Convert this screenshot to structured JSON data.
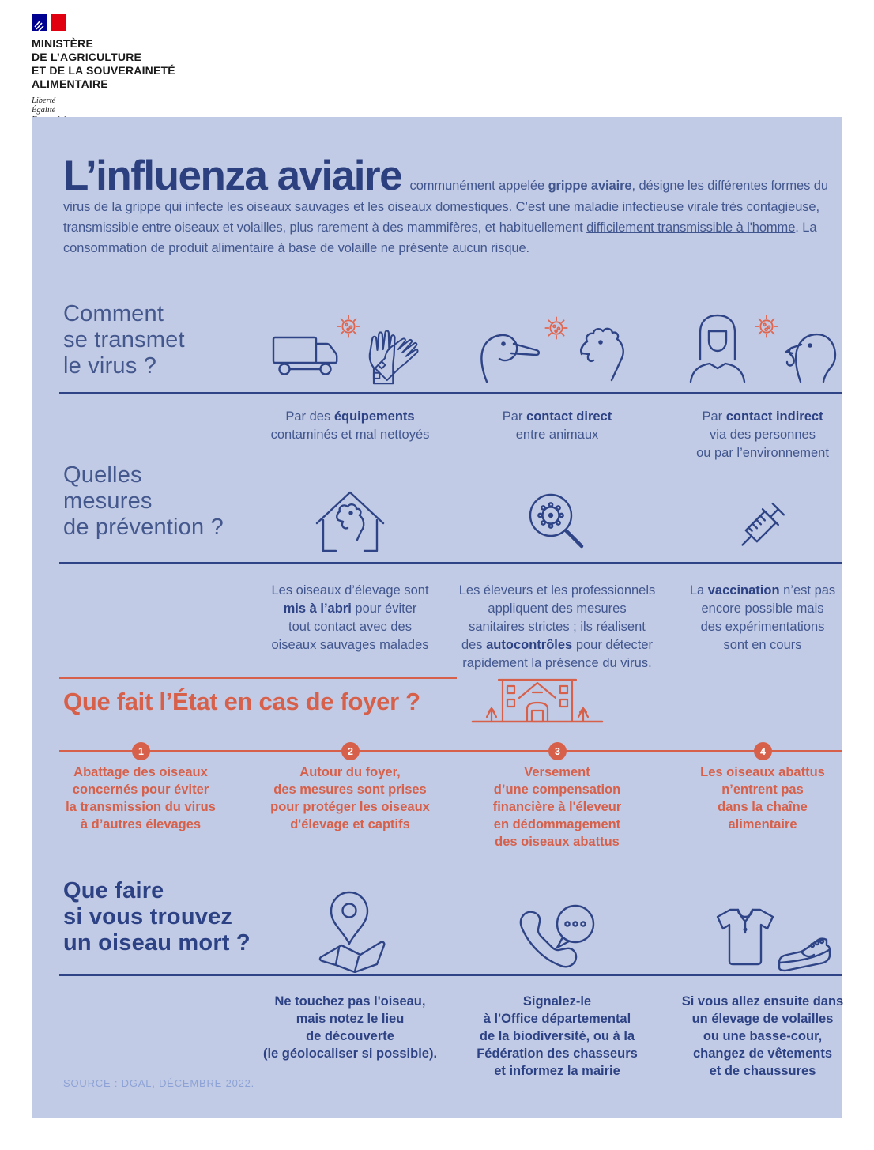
{
  "ministry": {
    "name_lines": [
      "MINISTÈRE",
      "DE L’AGRICULTURE",
      "ET DE LA SOUVERAINETÉ",
      "ALIMENTAIRE"
    ],
    "motto_lines": [
      "Liberté",
      "Égalité",
      "Fraternité"
    ]
  },
  "colors": {
    "panel_bg": "#c2cbe5",
    "navy": "#2e4486",
    "text_blue": "#41568e",
    "orange": "#d6604a",
    "virus_orange": "#e06650",
    "source_blue": "#8ca2d6",
    "flag_blue": "#000091",
    "flag_red": "#e1000f"
  },
  "title": "L’influenza aviaire",
  "intro_segments": [
    {
      "t": "communément appelée "
    },
    {
      "t": "grippe aviaire",
      "b": true
    },
    {
      "t": ", désigne les différentes formes du virus de la grippe qui infecte les oiseaux sauvages et les oiseaux domestiques. C’est une maladie infectieuse virale très contagieuse, transmissible entre oiseaux et volailles, plus rarement à des mammifères, et habituellement "
    },
    {
      "t": "difficilement transmissible à l'homme",
      "u": true
    },
    {
      "t": ". La consommation de produit alimentaire à base de volaille ne présente aucun risque."
    }
  ],
  "sections": {
    "transmission": {
      "heading": [
        {
          "t": "Comment"
        },
        {
          "br": true
        },
        {
          "t": "se transmet"
        },
        {
          "br": true
        },
        {
          "t": "le virus ?"
        }
      ],
      "items": [
        {
          "icon": "truck-gloves-virus-icon",
          "caption": [
            {
              "t": "Par des "
            },
            {
              "t": "équipements",
              "b": true
            },
            {
              "br": true
            },
            {
              "t": "contaminés et mal nettoyés"
            }
          ]
        },
        {
          "icon": "duck-chicken-virus-icon",
          "caption": [
            {
              "t": "Par "
            },
            {
              "t": "contact direct",
              "b": true
            },
            {
              "br": true
            },
            {
              "t": "entre animaux"
            }
          ]
        },
        {
          "icon": "person-turkey-virus-icon",
          "caption": [
            {
              "t": "Par "
            },
            {
              "t": "contact indirect",
              "b": true
            },
            {
              "br": true
            },
            {
              "t": "via des personnes"
            },
            {
              "br": true
            },
            {
              "t": "ou par l’environnement"
            }
          ]
        }
      ]
    },
    "prevention": {
      "heading": [
        {
          "t": "Quelles"
        },
        {
          "br": true
        },
        {
          "t": "mesures"
        },
        {
          "br": true
        },
        {
          "t": "de prévention ?"
        }
      ],
      "items": [
        {
          "icon": "henhouse-shelter-icon",
          "caption": [
            {
              "t": "Les oiseaux d’élevage sont"
            },
            {
              "br": true
            },
            {
              "t": "mis à l’abri",
              "b": true
            },
            {
              "t": " pour éviter"
            },
            {
              "br": true
            },
            {
              "t": "tout contact avec des"
            },
            {
              "br": true
            },
            {
              "t": "oiseaux sauvages malades"
            }
          ]
        },
        {
          "icon": "magnifier-virus-icon",
          "caption": [
            {
              "t": "Les éleveurs et les professionnels"
            },
            {
              "br": true
            },
            {
              "t": "appliquent des mesures"
            },
            {
              "br": true
            },
            {
              "t": "sanitaires strictes ; ils réalisent"
            },
            {
              "br": true
            },
            {
              "t": "des "
            },
            {
              "t": "autocontrôles",
              "b": true
            },
            {
              "t": " pour détecter"
            },
            {
              "br": true
            },
            {
              "t": "rapidement la présence du virus."
            }
          ]
        },
        {
          "icon": "syringe-icon",
          "caption": [
            {
              "t": "La "
            },
            {
              "t": "vaccination",
              "b": true
            },
            {
              "t": " n’est pas"
            },
            {
              "br": true
            },
            {
              "t": "encore possible mais"
            },
            {
              "br": true
            },
            {
              "t": "des expérimentations"
            },
            {
              "br": true
            },
            {
              "t": "sont en cours"
            }
          ]
        }
      ]
    },
    "state_response": {
      "heading": "Que fait l’État en cas de foyer ?",
      "icon": "town-hall-icon",
      "steps": [
        {
          "number": "1",
          "text": [
            {
              "t": "Abattage des oiseaux"
            },
            {
              "br": true
            },
            {
              "t": "concernés pour éviter"
            },
            {
              "br": true
            },
            {
              "t": "la transmission du virus"
            },
            {
              "br": true
            },
            {
              "t": "à d’autres élevages"
            }
          ]
        },
        {
          "number": "2",
          "text": [
            {
              "t": "Autour du foyer,"
            },
            {
              "br": true
            },
            {
              "t": "des mesures sont prises"
            },
            {
              "br": true
            },
            {
              "t": "pour protéger les oiseaux"
            },
            {
              "br": true
            },
            {
              "t": "d'élevage et captifs"
            }
          ]
        },
        {
          "number": "3",
          "text": [
            {
              "t": "Versement"
            },
            {
              "br": true
            },
            {
              "t": "d’une compensation"
            },
            {
              "br": true
            },
            {
              "t": "financière à l'éleveur"
            },
            {
              "br": true
            },
            {
              "t": "en dédommagement"
            },
            {
              "br": true
            },
            {
              "t": "des oiseaux abattus"
            }
          ]
        },
        {
          "number": "4",
          "text": [
            {
              "t": "Les oiseaux abattus"
            },
            {
              "br": true
            },
            {
              "t": "n’entrent pas"
            },
            {
              "br": true
            },
            {
              "t": "dans la chaîne"
            },
            {
              "br": true
            },
            {
              "t": "alimentaire"
            }
          ]
        }
      ]
    },
    "dead_bird": {
      "heading": [
        {
          "t": "Que faire"
        },
        {
          "br": true
        },
        {
          "t": "si vous trouvez"
        },
        {
          "br": true
        },
        {
          "t": "un oiseau mort ?"
        }
      ],
      "items": [
        {
          "icon": "map-location-icon",
          "caption": [
            {
              "t": "Ne touchez pas l'oiseau,"
            },
            {
              "br": true
            },
            {
              "t": "mais notez le lieu"
            },
            {
              "br": true
            },
            {
              "t": "de découverte"
            },
            {
              "br": true
            },
            {
              "t": "(le géolocaliser si possible)."
            }
          ]
        },
        {
          "icon": "phone-report-icon",
          "caption": [
            {
              "t": "Signalez-le"
            },
            {
              "br": true
            },
            {
              "t": "à l'Office départemental"
            },
            {
              "br": true
            },
            {
              "t": "de la biodiversité, ou à la"
            },
            {
              "br": true
            },
            {
              "t": "Fédération des chasseurs"
            },
            {
              "br": true
            },
            {
              "t": "et informez la mairie"
            }
          ]
        },
        {
          "icon": "clothes-shoes-icon",
          "caption": [
            {
              "t": "Si vous allez ensuite dans"
            },
            {
              "br": true
            },
            {
              "t": "un élevage de volailles"
            },
            {
              "br": true
            },
            {
              "t": "ou une basse-cour,"
            },
            {
              "br": true
            },
            {
              "t": "changez de vêtements"
            },
            {
              "br": true
            },
            {
              "t": "et de chaussures"
            }
          ]
        }
      ]
    }
  },
  "source": "SOURCE : DGAL, DÉCEMBRE 2022."
}
